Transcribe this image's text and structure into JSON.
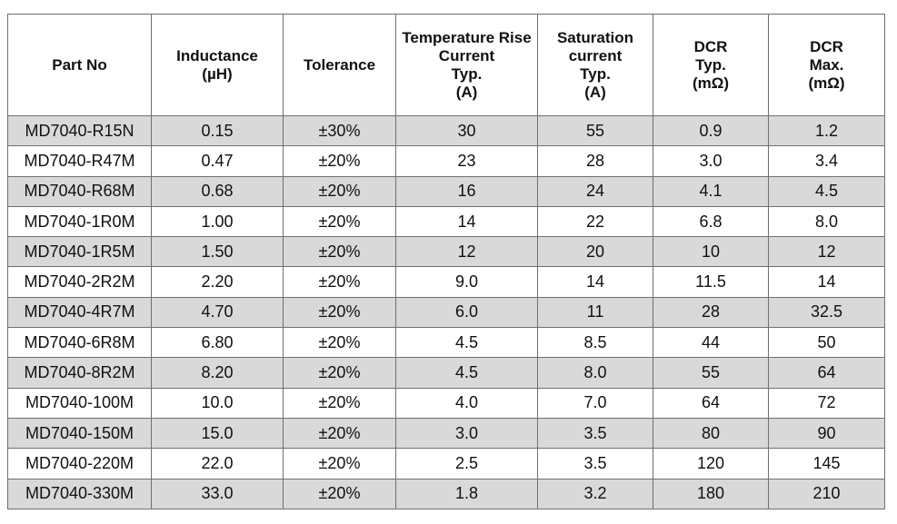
{
  "table": {
    "headers": [
      [
        "Part No"
      ],
      [
        "Inductance",
        "(µH)"
      ],
      [
        "Tolerance"
      ],
      [
        "Temperature Rise",
        "Current",
        "Typ.",
        "(A)"
      ],
      [
        "Saturation",
        "current",
        "Typ.",
        "(A)"
      ],
      [
        "DCR",
        "Typ.",
        "(mΩ)"
      ],
      [
        "DCR",
        "Max.",
        "(mΩ)"
      ]
    ],
    "rows": [
      [
        "MD7040-R15N",
        "0.15",
        "±30%",
        "30",
        "55",
        "0.9",
        "1.2"
      ],
      [
        "MD7040-R47M",
        "0.47",
        "±20%",
        "23",
        "28",
        "3.0",
        "3.4"
      ],
      [
        "MD7040-R68M",
        "0.68",
        "±20%",
        "16",
        "24",
        "4.1",
        "4.5"
      ],
      [
        "MD7040-1R0M",
        "1.00",
        "±20%",
        "14",
        "22",
        "6.8",
        "8.0"
      ],
      [
        "MD7040-1R5M",
        "1.50",
        "±20%",
        "12",
        "20",
        "10",
        "12"
      ],
      [
        "MD7040-2R2M",
        "2.20",
        "±20%",
        "9.0",
        "14",
        "11.5",
        "14"
      ],
      [
        "MD7040-4R7M",
        "4.70",
        "±20%",
        "6.0",
        "11",
        "28",
        "32.5"
      ],
      [
        "MD7040-6R8M",
        "6.80",
        "±20%",
        "4.5",
        "8.5",
        "44",
        "50"
      ],
      [
        "MD7040-8R2M",
        "8.20",
        "±20%",
        "4.5",
        "8.0",
        "55",
        "64"
      ],
      [
        "MD7040-100M",
        "10.0",
        "±20%",
        "4.0",
        "7.0",
        "64",
        "72"
      ],
      [
        "MD7040-150M",
        "15.0",
        "±20%",
        "3.0",
        "3.5",
        "80",
        "90"
      ],
      [
        "MD7040-220M",
        "22.0",
        "±20%",
        "2.5",
        "3.5",
        "120",
        "145"
      ],
      [
        "MD7040-330M",
        "33.0",
        "±20%",
        "1.8",
        "3.2",
        "180",
        "210"
      ]
    ]
  },
  "colors": {
    "stripe": "#d9d9d9",
    "border": "#6f6f6f"
  }
}
